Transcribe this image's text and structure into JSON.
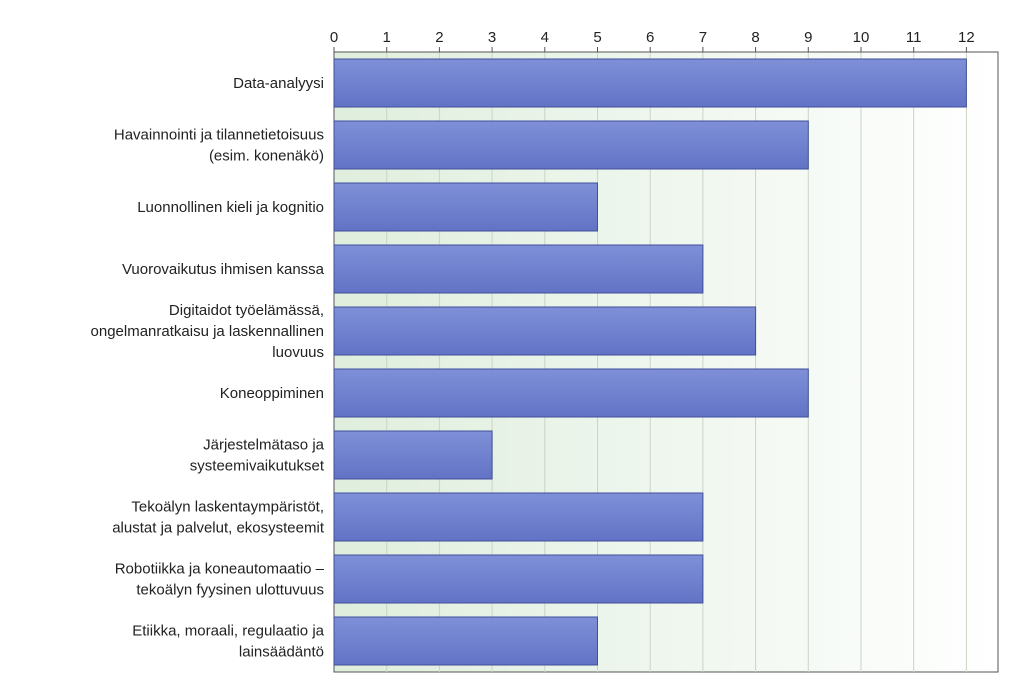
{
  "chart_data": {
    "type": "bar",
    "orientation": "horizontal",
    "title": "",
    "xlabel": "",
    "ylabel": "",
    "xlim": [
      0,
      12.6
    ],
    "x_ticks": [
      0,
      1,
      2,
      3,
      4,
      5,
      6,
      7,
      8,
      9,
      10,
      11,
      12
    ],
    "x_axis_position": "top",
    "grid": true,
    "legend": "none",
    "categories": [
      [
        "Data-analyysi"
      ],
      [
        "Havainnointi ja tilannetietoisuus",
        "(esim. konenäkö)"
      ],
      [
        "Luonnollinen kieli ja kognitio"
      ],
      [
        "Vuorovaikutus ihmisen kanssa"
      ],
      [
        "Digitaidot työelämässä,",
        "ongelmanratkaisu ja laskennallinen",
        "luovuus"
      ],
      [
        "Koneoppiminen"
      ],
      [
        "Järjestelmätaso ja",
        "systeemivaikutukset"
      ],
      [
        "Tekoälyn laskentaympäristöt,",
        "alustat ja palvelut, ekosysteemit"
      ],
      [
        "Robotiikka ja koneautomaatio –",
        "tekoälyn fyysinen ulottuvuus"
      ],
      [
        "Etiikka, moraali, regulaatio ja",
        "lainsäädäntö"
      ]
    ],
    "values": [
      12,
      9,
      5,
      7,
      8,
      9,
      3,
      7,
      7,
      5
    ],
    "colors": {
      "bar": "#6b7fcf",
      "bar_stroke": "#3f4f9a",
      "plot_bg_left": "#dfeedd",
      "plot_bg_right": "#ffffff",
      "grid": "#c9d6c6",
      "axis": "#555555"
    }
  }
}
